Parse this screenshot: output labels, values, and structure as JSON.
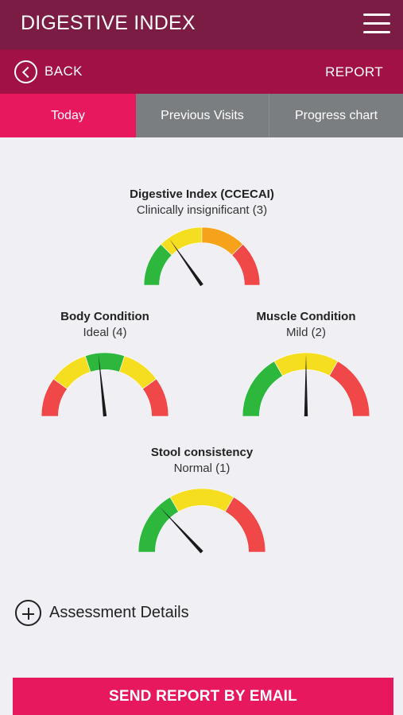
{
  "header": {
    "title": "DIGESTIVE INDEX"
  },
  "nav": {
    "back_label": "BACK",
    "report_label": "REPORT"
  },
  "tabs": [
    {
      "label": "Today",
      "active": true
    },
    {
      "label": "Previous Visits",
      "active": false
    },
    {
      "label": "Progress chart",
      "active": false
    }
  ],
  "gauges": {
    "digestive": {
      "title": "Digestive Index (CCECAI)",
      "value_text": "Clinically insignificant (3)",
      "colors": [
        "#2db83d",
        "#f5dd1f",
        "#f6a21a",
        "#f04848"
      ],
      "needle_angle_deg": 55
    },
    "body": {
      "title": "Body Condition",
      "value_text": "Ideal (4)",
      "colors": [
        "#f04848",
        "#f5dd1f",
        "#2db83d",
        "#f5dd1f",
        "#f04848"
      ],
      "needle_angle_deg": 84
    },
    "muscle": {
      "title": "Muscle Condition",
      "value_text": "Mild (2)",
      "colors": [
        "#2db83d",
        "#f5dd1f",
        "#f04848"
      ],
      "needle_angle_deg": 90
    },
    "stool": {
      "title": "Stool consistency",
      "value_text": "Normal (1)",
      "colors": [
        "#2db83d",
        "#f5dd1f",
        "#f04848"
      ],
      "needle_angle_deg": 47
    }
  },
  "assessment": {
    "label": "Assessment Details"
  },
  "send_button": {
    "label": "SEND REPORT BY EMAIL"
  }
}
